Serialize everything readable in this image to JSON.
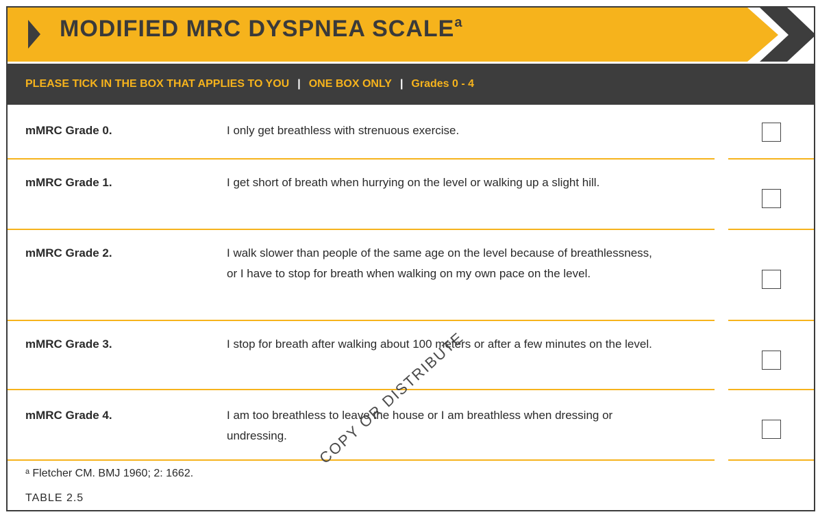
{
  "header": {
    "title": "MODIFIED MRC DYSPNEA SCALE",
    "title_superscript": "a",
    "accent_color": "#f6b31c",
    "dark_color": "#3d3d3d"
  },
  "instructions": {
    "part1": "PLEASE TICK IN THE BOX THAT APPLIES TO YOU",
    "separator": "|",
    "part2": "ONE BOX ONLY",
    "part3": "Grades 0 - 4"
  },
  "grades": [
    {
      "label": "mMRC Grade 0.",
      "description": "I only get breathless with strenuous exercise.",
      "checked": false
    },
    {
      "label": "mMRC Grade 1.",
      "description": "I get short of breath when hurrying on the level or walking up a slight hill.",
      "checked": false
    },
    {
      "label": "mMRC Grade 2.",
      "description": "I walk slower than people of the same age on the level because of breathlessness, or I have to stop for breath when walking on my own pace on the level.",
      "checked": false
    },
    {
      "label": "mMRC Grade 3.",
      "description": "I stop for breath after walking about 100 meters or after a few minutes on the level.",
      "checked": false
    },
    {
      "label": "mMRC Grade 4.",
      "description": "I am too breathless to leave the house or I am breathless when dressing or undressing.",
      "checked": false
    }
  ],
  "footer": {
    "footnote": "ᵃ Fletcher CM. BMJ 1960; 2: 1662.",
    "table_ref": "TABLE 2.5"
  },
  "watermark": "COPY OR DISTRIBUTE"
}
